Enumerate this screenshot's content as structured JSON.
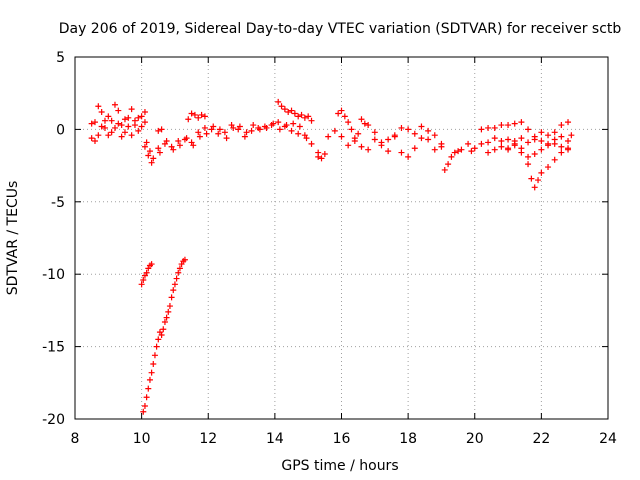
{
  "chart_data": {
    "type": "scatter",
    "title": "Day 206 of 2019, Sidereal Day-to-day VTEC variation (SDTVAR) for receiver sctb",
    "xlabel": "GPS time / hours",
    "ylabel": "SDTVAR / TECUs",
    "xlim": [
      8,
      24
    ],
    "ylim": [
      -20,
      5
    ],
    "x_ticks": [
      8,
      10,
      12,
      14,
      16,
      18,
      20,
      22,
      24
    ],
    "x_tick_labels": [
      "8",
      "10",
      "12",
      "14",
      "16",
      "18",
      "20",
      "22",
      "24"
    ],
    "y_ticks": [
      -20,
      -15,
      -10,
      -5,
      0,
      5
    ],
    "y_tick_labels": [
      "-20",
      "-15",
      "-10",
      "-5",
      "0",
      "5"
    ],
    "grid": true,
    "marker": "+",
    "series": [
      {
        "name": "SDTVAR",
        "color": "#ff0000",
        "segments": [
          {
            "x": [
              8.5,
              8.6,
              8.7,
              8.8,
              8.9,
              9.0,
              9.1,
              9.2,
              9.3,
              9.4,
              9.5,
              9.6,
              9.7,
              9.8,
              9.9,
              10.0,
              10.1
            ],
            "y": [
              -0.6,
              0.5,
              1.6,
              1.2,
              0.1,
              -0.4,
              0.6,
              1.7,
              1.3,
              0.3,
              -0.2,
              0.8,
              1.4,
              0.6,
              -0.1,
              0.9,
              1.2
            ]
          },
          {
            "x": [
              8.5,
              8.6,
              8.7,
              8.8,
              8.9,
              9.0,
              9.1,
              9.2,
              9.3,
              9.4,
              9.5,
              9.6,
              9.7,
              9.8,
              9.9,
              10.0,
              10.1
            ],
            "y": [
              0.4,
              -0.8,
              -0.4,
              0.2,
              0.6,
              0.9,
              -0.2,
              0.1,
              0.4,
              -0.5,
              0.7,
              0.2,
              -0.4,
              0.3,
              0.8,
              0.2,
              0.5
            ]
          },
          {
            "x": [
              10.1,
              10.2,
              10.3,
              10.5,
              10.7,
              10.9,
              11.1,
              11.3,
              11.5,
              11.7,
              11.9,
              12.1,
              12.3,
              12.5,
              12.7,
              12.9,
              13.1,
              13.3,
              13.5,
              13.7,
              13.9,
              14.1,
              14.3,
              14.5,
              14.7,
              14.9,
              15.1,
              15.3
            ],
            "y": [
              -1.2,
              -1.8,
              -2.3,
              -1.3,
              -1.0,
              -1.2,
              -0.8,
              -0.7,
              -0.9,
              -0.2,
              0.1,
              0.0,
              -0.3,
              -0.2,
              0.3,
              0.0,
              -0.5,
              -0.1,
              0.1,
              0.2,
              0.3,
              0.5,
              0.2,
              -0.1,
              -0.3,
              -0.4,
              -1.0,
              -1.9
            ]
          },
          {
            "x": [
              10.15,
              10.25,
              10.35,
              10.55,
              10.75,
              10.95,
              11.15,
              11.35,
              11.55,
              11.75,
              11.95,
              12.15,
              12.35,
              12.55,
              12.75,
              12.95,
              13.15,
              13.35,
              13.55,
              13.75,
              13.95,
              14.15,
              14.35,
              14.55,
              14.75,
              14.95
            ],
            "y": [
              -0.9,
              -1.5,
              -2.0,
              -1.6,
              -0.8,
              -1.4,
              -1.1,
              -0.6,
              -1.1,
              -0.5,
              -0.3,
              0.2,
              0.0,
              -0.6,
              0.1,
              0.2,
              -0.2,
              0.3,
              0.0,
              0.1,
              0.4,
              0.0,
              0.3,
              0.4,
              0.2,
              -0.6
            ]
          },
          {
            "x": [
              10.5,
              10.6,
              11.4,
              11.5,
              11.6,
              11.7,
              11.8,
              11.9,
              14.1,
              14.2,
              14.3,
              14.4,
              14.5,
              14.6,
              14.7,
              14.8,
              14.9,
              15.0,
              15.1
            ],
            "y": [
              -0.1,
              0.0,
              0.7,
              1.1,
              1.0,
              0.8,
              1.0,
              0.9,
              1.9,
              1.6,
              1.4,
              1.2,
              1.3,
              1.1,
              0.9,
              1.0,
              0.8,
              0.9,
              0.6
            ]
          },
          {
            "x": [
              15.3,
              15.4,
              15.5,
              15.6,
              15.8,
              16.0,
              16.2,
              16.4,
              16.6,
              16.8,
              17.0,
              17.2,
              17.4,
              17.6,
              17.8,
              18.0,
              18.2,
              18.4,
              18.6,
              18.8,
              19.0,
              19.1,
              19.2,
              19.3,
              19.4,
              19.5,
              19.6
            ],
            "y": [
              -1.6,
              -2.0,
              -1.7,
              -0.5,
              -0.1,
              -0.5,
              -1.1,
              -0.8,
              -1.2,
              -1.4,
              -0.7,
              -0.9,
              -0.7,
              -0.5,
              -1.6,
              -1.9,
              -1.3,
              -0.6,
              -0.7,
              -1.4,
              -1.2,
              -2.8,
              -2.4,
              -1.9,
              -1.6,
              -1.5,
              -1.4
            ]
          },
          {
            "x": [
              15.9,
              16.0,
              16.1,
              16.2,
              16.3,
              16.4,
              16.5,
              16.6,
              16.7,
              16.8,
              17.0,
              17.2,
              17.4,
              17.6,
              17.8,
              18.0,
              18.2,
              18.4,
              18.6,
              18.8,
              19.0
            ],
            "y": [
              1.1,
              1.3,
              0.9,
              0.5,
              0.0,
              -0.6,
              -0.3,
              0.7,
              0.4,
              0.3,
              -0.2,
              -1.1,
              -1.5,
              -0.4,
              0.1,
              0.0,
              -0.3,
              0.2,
              -0.1,
              -0.4,
              -1.0
            ]
          },
          {
            "x": [
              19.8,
              19.9,
              20.0,
              20.2,
              20.4,
              20.6,
              20.8,
              21.0,
              21.2,
              21.4,
              21.6,
              21.8,
              22.0,
              22.2,
              22.4,
              22.6,
              22.8,
              22.9
            ],
            "y": [
              -1.0,
              -1.5,
              -1.3,
              -1.0,
              -0.9,
              -0.6,
              -0.8,
              -0.7,
              -0.8,
              -0.6,
              -0.9,
              -0.7,
              -0.8,
              -1.0,
              -0.7,
              -0.5,
              -0.8,
              -0.4
            ]
          },
          {
            "x": [
              20.2,
              20.4,
              20.6,
              20.8,
              21.0,
              21.2,
              21.4,
              21.6,
              21.8,
              22.0,
              22.2,
              22.4,
              22.6,
              22.8
            ],
            "y": [
              0.0,
              0.1,
              0.1,
              0.3,
              0.3,
              0.4,
              0.5,
              0.0,
              -0.5,
              -0.2,
              -0.4,
              -0.2,
              0.3,
              0.5
            ]
          },
          {
            "x": [
              21.0,
              21.2,
              21.4,
              21.6,
              21.7,
              21.8,
              21.9,
              22.0,
              22.2,
              22.4,
              22.6,
              22.8
            ],
            "y": [
              -1.4,
              -1.1,
              -1.3,
              -2.4,
              -3.4,
              -4.0,
              -3.5,
              -3.0,
              -2.6,
              -2.1,
              -1.6,
              -1.4
            ]
          },
          {
            "x": [
              20.4,
              20.6,
              20.8,
              21.0,
              21.2,
              21.4,
              21.6,
              21.8,
              22.0,
              22.2,
              22.4,
              22.6,
              22.8
            ],
            "y": [
              -1.6,
              -1.4,
              -1.2,
              -1.3,
              -1.0,
              -1.6,
              -1.9,
              -1.7,
              -1.4,
              -1.1,
              -1.0,
              -1.2,
              -1.3
            ]
          },
          {
            "x": [
              10.0,
              10.05,
              10.1,
              10.15,
              10.2,
              10.25,
              10.3
            ],
            "y": [
              -10.7,
              -10.4,
              -10.1,
              -9.9,
              -9.6,
              -9.4,
              -9.3
            ]
          },
          {
            "x": [
              10.05,
              10.1,
              10.15,
              10.2,
              10.25,
              10.3,
              10.35,
              10.4,
              10.45,
              10.5,
              10.55,
              10.6,
              10.65,
              10.7,
              10.75,
              10.8,
              10.85,
              10.9,
              10.95,
              11.0,
              11.05,
              11.1,
              11.15,
              11.2,
              11.25,
              11.3
            ],
            "y": [
              -19.5,
              -19.1,
              -18.5,
              -17.9,
              -17.3,
              -16.8,
              -16.2,
              -15.6,
              -15.0,
              -14.5,
              -14.0,
              -14.2,
              -13.8,
              -13.3,
              -13.0,
              -12.6,
              -12.2,
              -11.6,
              -11.1,
              -10.7,
              -10.3,
              -9.9,
              -9.6,
              -9.3,
              -9.1,
              -9.0
            ]
          }
        ]
      }
    ]
  }
}
